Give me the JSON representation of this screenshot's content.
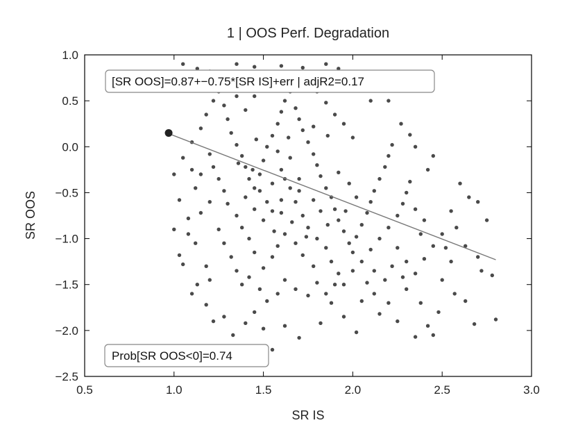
{
  "chart_data": {
    "type": "scatter",
    "title": "1 | OOS Perf. Degradation",
    "xlabel": "SR IS",
    "ylabel": "SR OOS",
    "xlim": [
      0.5,
      3.0
    ],
    "ylim": [
      -2.5,
      1.0
    ],
    "xticks": [
      0.5,
      1.0,
      1.5,
      2.0,
      2.5,
      3.0
    ],
    "xtick_labels": [
      "0.5",
      "1.0",
      "1.5",
      "2.0",
      "2.5",
      "3.0"
    ],
    "yticks": [
      1.0,
      0.5,
      0.0,
      -0.5,
      -1.0,
      -1.5,
      -2.0,
      -2.5
    ],
    "ytick_labels": [
      "1.0",
      "0.5",
      "0.0",
      "−0.5",
      "−1.0",
      "−1.5",
      "−2.0",
      "−2.5"
    ],
    "grid": false,
    "annotations": [
      "[SR OOS]=0.87+−0.75*[SR IS]+err | adjR2=0.17",
      "Prob[SR OOS<0]=0.74"
    ],
    "fit_line": {
      "intercept": 0.87,
      "slope": -0.75,
      "x_range": [
        0.95,
        2.8
      ]
    },
    "highlight_point": {
      "x": 0.97,
      "y": 0.15
    },
    "points": [
      [
        1.05,
        0.9
      ],
      [
        1.13,
        0.85
      ],
      [
        0.97,
        0.7
      ],
      [
        1.2,
        0.82
      ],
      [
        1.35,
        0.9
      ],
      [
        1.45,
        0.87
      ],
      [
        1.6,
        0.88
      ],
      [
        1.72,
        0.86
      ],
      [
        1.85,
        0.9
      ],
      [
        1.92,
        0.85
      ],
      [
        2.05,
        0.75
      ],
      [
        2.1,
        0.5
      ],
      [
        2.2,
        0.5
      ],
      [
        2.27,
        0.25
      ],
      [
        2.32,
        0.13
      ],
      [
        2.35,
        0.0
      ],
      [
        2.45,
        -0.1
      ],
      [
        2.42,
        -0.25
      ],
      [
        2.6,
        -0.4
      ],
      [
        2.65,
        -0.55
      ],
      [
        2.7,
        -0.6
      ],
      [
        2.75,
        -0.8
      ],
      [
        2.55,
        -0.7
      ],
      [
        2.5,
        -0.95
      ],
      [
        2.63,
        -1.08
      ],
      [
        2.7,
        -1.2
      ],
      [
        2.72,
        -1.35
      ],
      [
        2.78,
        -1.4
      ],
      [
        2.8,
        -1.88
      ],
      [
        2.68,
        -1.93
      ],
      [
        2.63,
        -1.68
      ],
      [
        2.57,
        -1.6
      ],
      [
        2.5,
        -1.45
      ],
      [
        2.48,
        -1.8
      ],
      [
        2.45,
        -2.05
      ],
      [
        2.42,
        -1.95
      ],
      [
        2.35,
        -2.07
      ],
      [
        2.38,
        -1.7
      ],
      [
        2.3,
        -1.55
      ],
      [
        2.25,
        -1.9
      ],
      [
        2.2,
        -1.7
      ],
      [
        2.15,
        -1.82
      ],
      [
        2.12,
        -1.6
      ],
      [
        2.05,
        -1.68
      ],
      [
        2.02,
        -2.02
      ],
      [
        1.95,
        -1.85
      ],
      [
        1.88,
        -1.7
      ],
      [
        1.82,
        -1.92
      ],
      [
        1.7,
        -2.08
      ],
      [
        1.62,
        -1.95
      ],
      [
        1.55,
        -2.21
      ],
      [
        1.5,
        -1.98
      ],
      [
        1.45,
        -1.8
      ],
      [
        1.4,
        -1.92
      ],
      [
        1.33,
        -2.05
      ],
      [
        1.28,
        -1.85
      ],
      [
        1.22,
        -1.9
      ],
      [
        1.18,
        -1.72
      ],
      [
        1.1,
        -1.6
      ],
      [
        1.13,
        -1.5
      ],
      [
        1.05,
        -1.28
      ],
      [
        1.03,
        -1.18
      ],
      [
        1.0,
        -0.9
      ],
      [
        1.08,
        -0.95
      ],
      [
        1.12,
        -1.05
      ],
      [
        1.15,
        -0.72
      ],
      [
        1.2,
        -0.6
      ],
      [
        1.03,
        -0.58
      ],
      [
        1.0,
        -0.3
      ],
      [
        1.05,
        -0.12
      ],
      [
        1.1,
        0.05
      ],
      [
        1.15,
        0.2
      ],
      [
        1.18,
        0.35
      ],
      [
        1.22,
        0.5
      ],
      [
        1.25,
        0.6
      ],
      [
        1.28,
        0.45
      ],
      [
        1.3,
        0.3
      ],
      [
        1.32,
        0.15
      ],
      [
        1.35,
        0.02
      ],
      [
        1.38,
        -0.1
      ],
      [
        1.4,
        -0.22
      ],
      [
        1.42,
        -0.35
      ],
      [
        1.45,
        -0.45
      ],
      [
        1.48,
        -0.3
      ],
      [
        1.5,
        -0.15
      ],
      [
        1.52,
        0.0
      ],
      [
        1.55,
        0.12
      ],
      [
        1.58,
        0.25
      ],
      [
        1.6,
        0.38
      ],
      [
        1.62,
        0.5
      ],
      [
        1.65,
        0.6
      ],
      [
        1.68,
        0.42
      ],
      [
        1.7,
        0.3
      ],
      [
        1.72,
        0.18
      ],
      [
        1.75,
        0.05
      ],
      [
        1.78,
        -0.08
      ],
      [
        1.8,
        -0.2
      ],
      [
        1.82,
        -0.32
      ],
      [
        1.85,
        -0.45
      ],
      [
        1.88,
        -0.55
      ],
      [
        1.9,
        -0.68
      ],
      [
        1.92,
        -0.8
      ],
      [
        1.95,
        -0.92
      ],
      [
        1.98,
        -1.05
      ],
      [
        2.0,
        -1.15
      ],
      [
        2.02,
        -0.98
      ],
      [
        2.05,
        -0.85
      ],
      [
        2.08,
        -0.72
      ],
      [
        2.1,
        -0.6
      ],
      [
        2.12,
        -0.48
      ],
      [
        2.15,
        -0.35
      ],
      [
        2.18,
        -0.22
      ],
      [
        2.2,
        -0.1
      ],
      [
        2.22,
        0.02
      ],
      [
        2.0,
        0.1
      ],
      [
        1.95,
        0.25
      ],
      [
        1.9,
        0.35
      ],
      [
        1.85,
        0.48
      ],
      [
        1.8,
        0.6
      ],
      [
        1.75,
        0.7
      ],
      [
        1.5,
        0.7
      ],
      [
        1.45,
        0.55
      ],
      [
        1.4,
        0.4
      ],
      [
        1.35,
        0.55
      ],
      [
        1.3,
        0.7
      ],
      [
        1.25,
        0.78
      ],
      [
        1.4,
        -0.55
      ],
      [
        1.45,
        -0.68
      ],
      [
        1.5,
        -0.8
      ],
      [
        1.55,
        -0.7
      ],
      [
        1.6,
        -0.58
      ],
      [
        1.65,
        -0.45
      ],
      [
        1.7,
        -0.35
      ],
      [
        1.55,
        -0.4
      ],
      [
        1.6,
        -0.25
      ],
      [
        1.65,
        -0.12
      ],
      [
        1.68,
        -0.6
      ],
      [
        1.72,
        -0.75
      ],
      [
        1.75,
        -0.88
      ],
      [
        1.8,
        -1.0
      ],
      [
        1.85,
        -1.1
      ],
      [
        1.88,
        -1.25
      ],
      [
        1.92,
        -1.38
      ],
      [
        1.95,
        -1.5
      ],
      [
        1.78,
        -1.3
      ],
      [
        1.72,
        -1.18
      ],
      [
        1.68,
        -1.05
      ],
      [
        1.62,
        -0.95
      ],
      [
        1.58,
        -1.08
      ],
      [
        1.55,
        -1.2
      ],
      [
        1.5,
        -1.32
      ],
      [
        1.45,
        -1.15
      ],
      [
        1.42,
        -1.0
      ],
      [
        1.38,
        -0.88
      ],
      [
        1.35,
        -0.75
      ],
      [
        1.3,
        -0.62
      ],
      [
        1.28,
        -0.48
      ],
      [
        1.25,
        -0.35
      ],
      [
        1.22,
        -0.22
      ],
      [
        1.2,
        -0.08
      ],
      [
        1.25,
        -0.9
      ],
      [
        1.28,
        -1.05
      ],
      [
        1.32,
        -1.2
      ],
      [
        1.35,
        -1.35
      ],
      [
        1.38,
        -1.5
      ],
      [
        1.42,
        -1.42
      ],
      [
        1.48,
        -1.55
      ],
      [
        1.52,
        -1.68
      ],
      [
        1.58,
        -1.6
      ],
      [
        1.62,
        -1.45
      ],
      [
        1.68,
        -1.55
      ],
      [
        1.75,
        -1.62
      ],
      [
        1.8,
        -1.48
      ],
      [
        1.85,
        -1.6
      ],
      [
        1.9,
        -1.5
      ],
      [
        2.0,
        -1.35
      ],
      [
        2.05,
        -1.25
      ],
      [
        2.1,
        -1.12
      ],
      [
        2.15,
        -1.0
      ],
      [
        2.2,
        -0.88
      ],
      [
        2.25,
        -0.75
      ],
      [
        2.28,
        -0.62
      ],
      [
        2.3,
        -0.5
      ],
      [
        2.32,
        -0.38
      ],
      [
        2.25,
        -1.1
      ],
      [
        2.3,
        -1.25
      ],
      [
        2.35,
        -1.38
      ],
      [
        2.4,
        -1.22
      ],
      [
        2.45,
        -1.08
      ],
      [
        2.38,
        -0.95
      ],
      [
        2.4,
        -0.8
      ],
      [
        2.35,
        -0.68
      ],
      [
        2.28,
        -1.42
      ],
      [
        2.22,
        -1.3
      ],
      [
        2.18,
        -1.45
      ],
      [
        2.12,
        -1.35
      ],
      [
        2.08,
        -1.48
      ],
      [
        2.55,
        -1.25
      ],
      [
        2.52,
        -1.1
      ],
      [
        2.58,
        -0.88
      ],
      [
        1.15,
        -0.3
      ],
      [
        1.12,
        -0.45
      ],
      [
        1.18,
        -1.3
      ],
      [
        1.2,
        -1.45
      ],
      [
        1.08,
        -0.78
      ],
      [
        1.1,
        -0.25
      ],
      [
        1.62,
        -0.35
      ],
      [
        1.7,
        -0.48
      ],
      [
        1.78,
        -0.58
      ],
      [
        1.82,
        -0.7
      ],
      [
        1.6,
        -0.72
      ],
      [
        1.52,
        -0.6
      ],
      [
        1.48,
        -0.48
      ],
      [
        1.44,
        -0.25
      ],
      [
        1.56,
        -0.92
      ],
      [
        1.66,
        -0.82
      ],
      [
        1.74,
        -0.98
      ],
      [
        1.86,
        -0.85
      ],
      [
        1.96,
        -0.7
      ],
      [
        2.02,
        -0.55
      ],
      [
        1.98,
        -0.4
      ],
      [
        1.92,
        -0.28
      ],
      [
        1.64,
        0.1
      ],
      [
        1.58,
        -0.05
      ],
      [
        1.36,
        -0.18
      ],
      [
        1.46,
        0.08
      ],
      [
        1.86,
        0.12
      ],
      [
        1.78,
        0.22
      ]
    ]
  }
}
